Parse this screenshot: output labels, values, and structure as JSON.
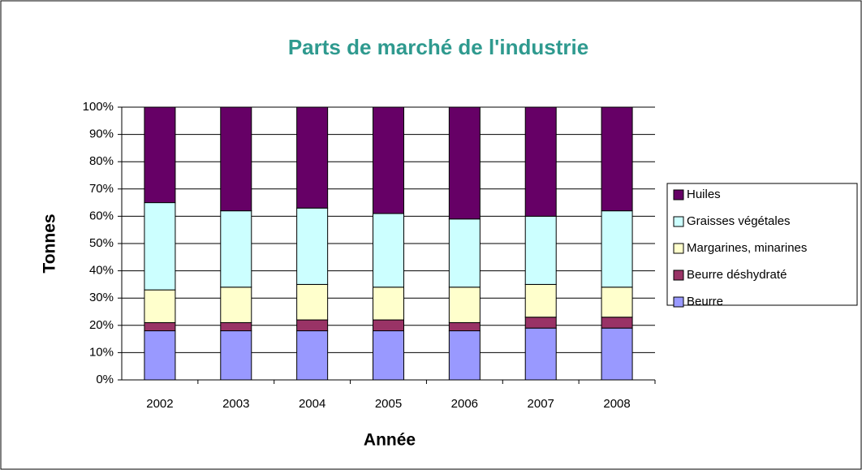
{
  "chart_data": {
    "type": "stacked_bar",
    "title": "Parts de marché de l'industrie",
    "x_label": "Année",
    "y_label": "Tonnes",
    "categories": [
      "2002",
      "2003",
      "2004",
      "2005",
      "2006",
      "2007",
      "2008"
    ],
    "series": [
      {
        "name": "Beurre",
        "color": "#9999ff",
        "values": [
          18,
          18,
          18,
          18,
          18,
          19,
          19
        ]
      },
      {
        "name": "Beurre déshydraté",
        "color": "#993366",
        "values": [
          3,
          3,
          4,
          4,
          3,
          4,
          4
        ]
      },
      {
        "name": "Margarines, minarines",
        "color": "#ffffcc",
        "values": [
          12,
          13,
          13,
          12,
          13,
          12,
          11
        ]
      },
      {
        "name": "Graisses végétales",
        "color": "#ccffff",
        "values": [
          32,
          28,
          28,
          27,
          25,
          25,
          28
        ]
      },
      {
        "name": "Huiles",
        "color": "#660066",
        "values": [
          35,
          38,
          37,
          39,
          41,
          40,
          38
        ]
      }
    ],
    "ylim": [
      0,
      100
    ],
    "yticks": [
      {
        "value": 0,
        "label": "0%"
      },
      {
        "value": 10,
        "label": "10%"
      },
      {
        "value": 20,
        "label": "20%"
      },
      {
        "value": 30,
        "label": "30%"
      },
      {
        "value": 40,
        "label": "40%"
      },
      {
        "value": 50,
        "label": "50%"
      },
      {
        "value": 60,
        "label": "60%"
      },
      {
        "value": 70,
        "label": "70%"
      },
      {
        "value": 80,
        "label": "80%"
      },
      {
        "value": 90,
        "label": "90%"
      },
      {
        "value": 100,
        "label": "100%"
      }
    ],
    "grid": true,
    "legend": "right"
  }
}
